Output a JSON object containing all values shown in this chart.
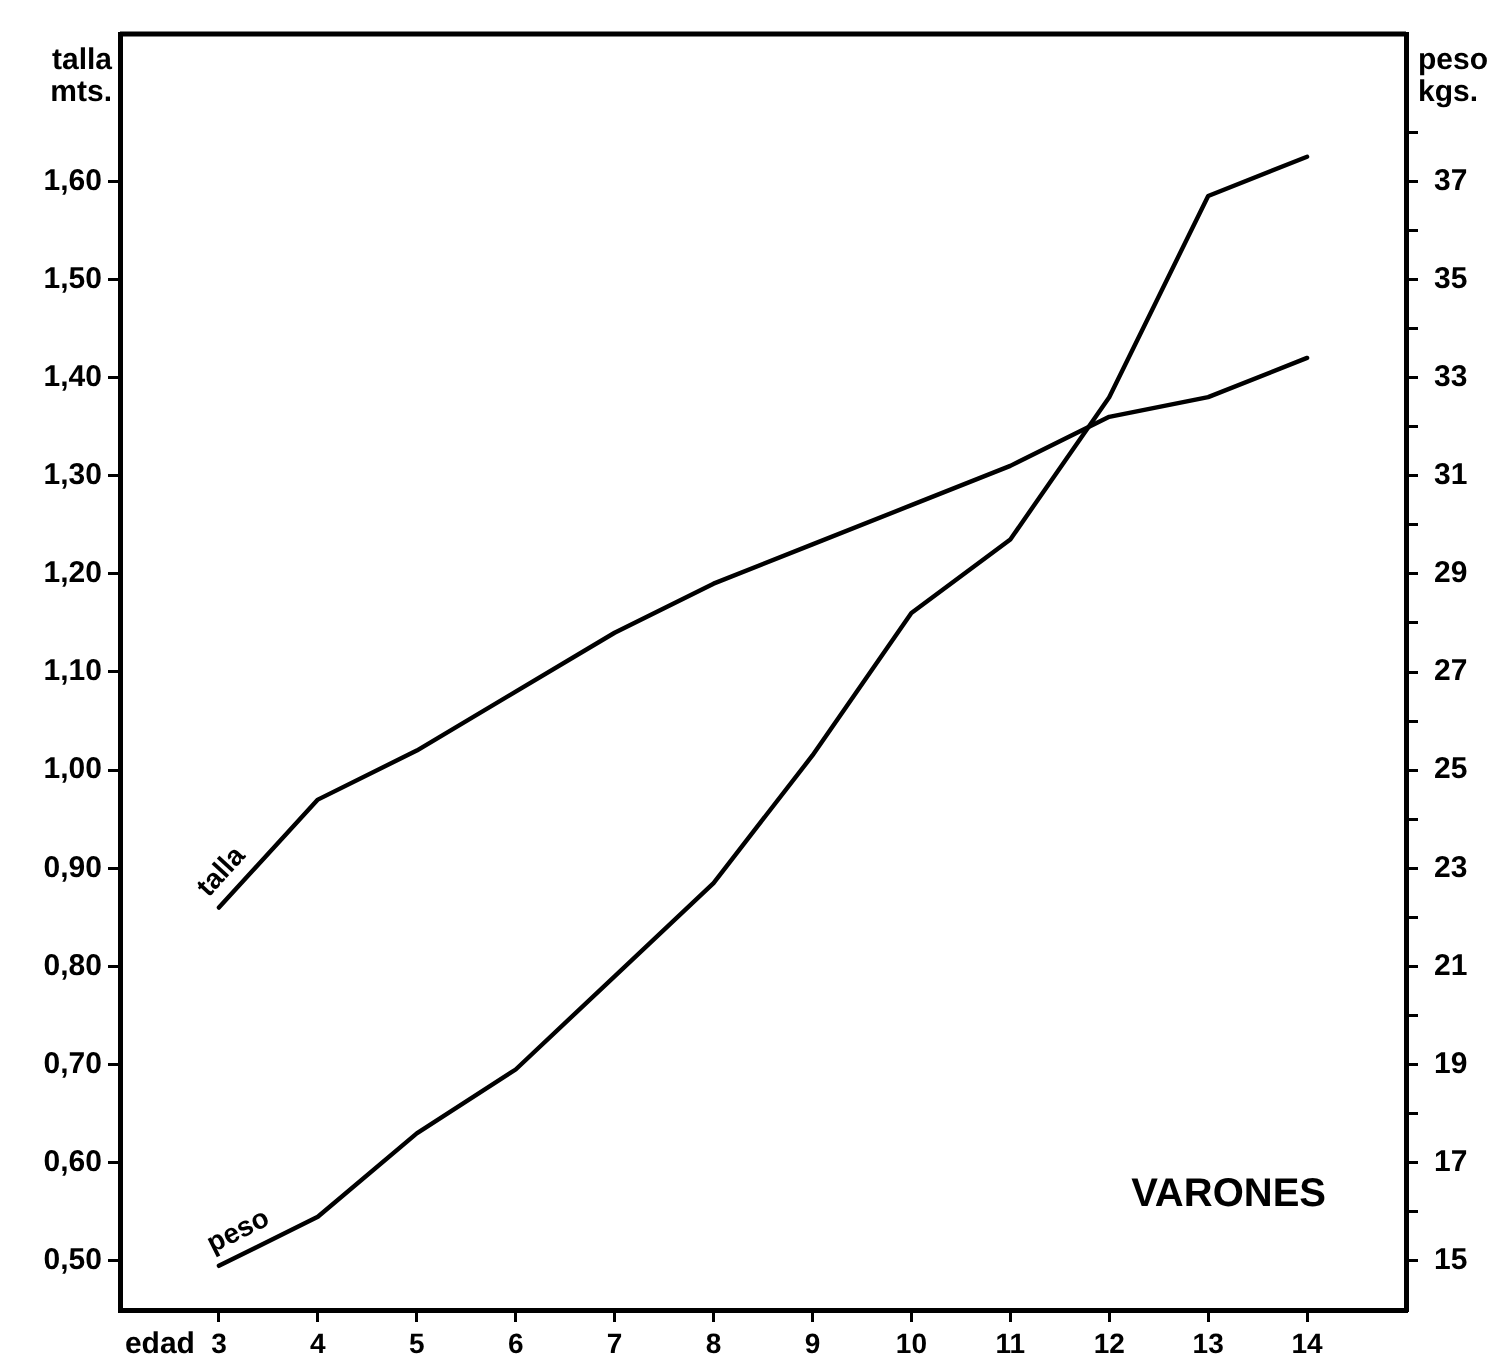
{
  "chart_data": {
    "type": "line",
    "xlabel": "edad",
    "ylabel": "talla mts.",
    "y2label": "peso kgs.",
    "annotations": [
      "VARONES"
    ],
    "x": [
      3,
      4,
      5,
      6,
      7,
      8,
      9,
      10,
      11,
      12,
      13,
      14
    ],
    "xlim": [
      2,
      15
    ],
    "xticks": [
      3,
      4,
      5,
      6,
      7,
      8,
      9,
      10,
      11,
      12,
      13,
      14
    ],
    "ylim": [
      0.45,
      1.75
    ],
    "yticks": [
      {
        "value": 0.5,
        "label": "0,50"
      },
      {
        "value": 0.6,
        "label": "0,60"
      },
      {
        "value": 0.7,
        "label": "0,70"
      },
      {
        "value": 0.8,
        "label": "0,80"
      },
      {
        "value": 0.9,
        "label": "0,90"
      },
      {
        "value": 1.0,
        "label": "1,00"
      },
      {
        "value": 1.1,
        "label": "1,10"
      },
      {
        "value": 1.2,
        "label": "1,20"
      },
      {
        "value": 1.3,
        "label": "1,30"
      },
      {
        "value": 1.4,
        "label": "1,40"
      },
      {
        "value": 1.5,
        "label": "1,50"
      },
      {
        "value": 1.6,
        "label": "1,60"
      }
    ],
    "y2lim": [
      14,
      40
    ],
    "y2ticks": [
      15,
      {
        "value": 16,
        "label": null
      },
      17,
      {
        "value": 18,
        "label": null
      },
      19,
      {
        "value": 20,
        "label": null
      },
      21,
      {
        "value": 22,
        "label": null
      },
      23,
      {
        "value": 24,
        "label": null
      },
      25,
      {
        "value": 26,
        "label": null
      },
      27,
      {
        "value": 28,
        "label": null
      },
      29,
      {
        "value": 30,
        "label": null
      },
      31,
      {
        "value": 32,
        "label": null
      },
      33,
      {
        "value": 34,
        "label": null
      },
      35,
      {
        "value": 36,
        "label": null
      },
      37,
      {
        "value": 38,
        "label": null
      }
    ],
    "series": [
      {
        "name": "talla",
        "color": "#000000",
        "values": [
          0.86,
          0.97,
          1.02,
          1.08,
          1.14,
          1.19,
          1.23,
          1.27,
          1.31,
          1.36,
          1.38,
          1.42
        ]
      },
      {
        "name": "peso",
        "color": "#000000",
        "axis": "y2",
        "values": [
          14.9,
          15.9,
          17.6,
          18.9,
          20.8,
          22.7,
          25.3,
          28.2,
          29.7,
          32.6,
          36.7,
          37.5
        ]
      }
    ],
    "grid": false,
    "marker": "none",
    "line_style": "solid"
  }
}
